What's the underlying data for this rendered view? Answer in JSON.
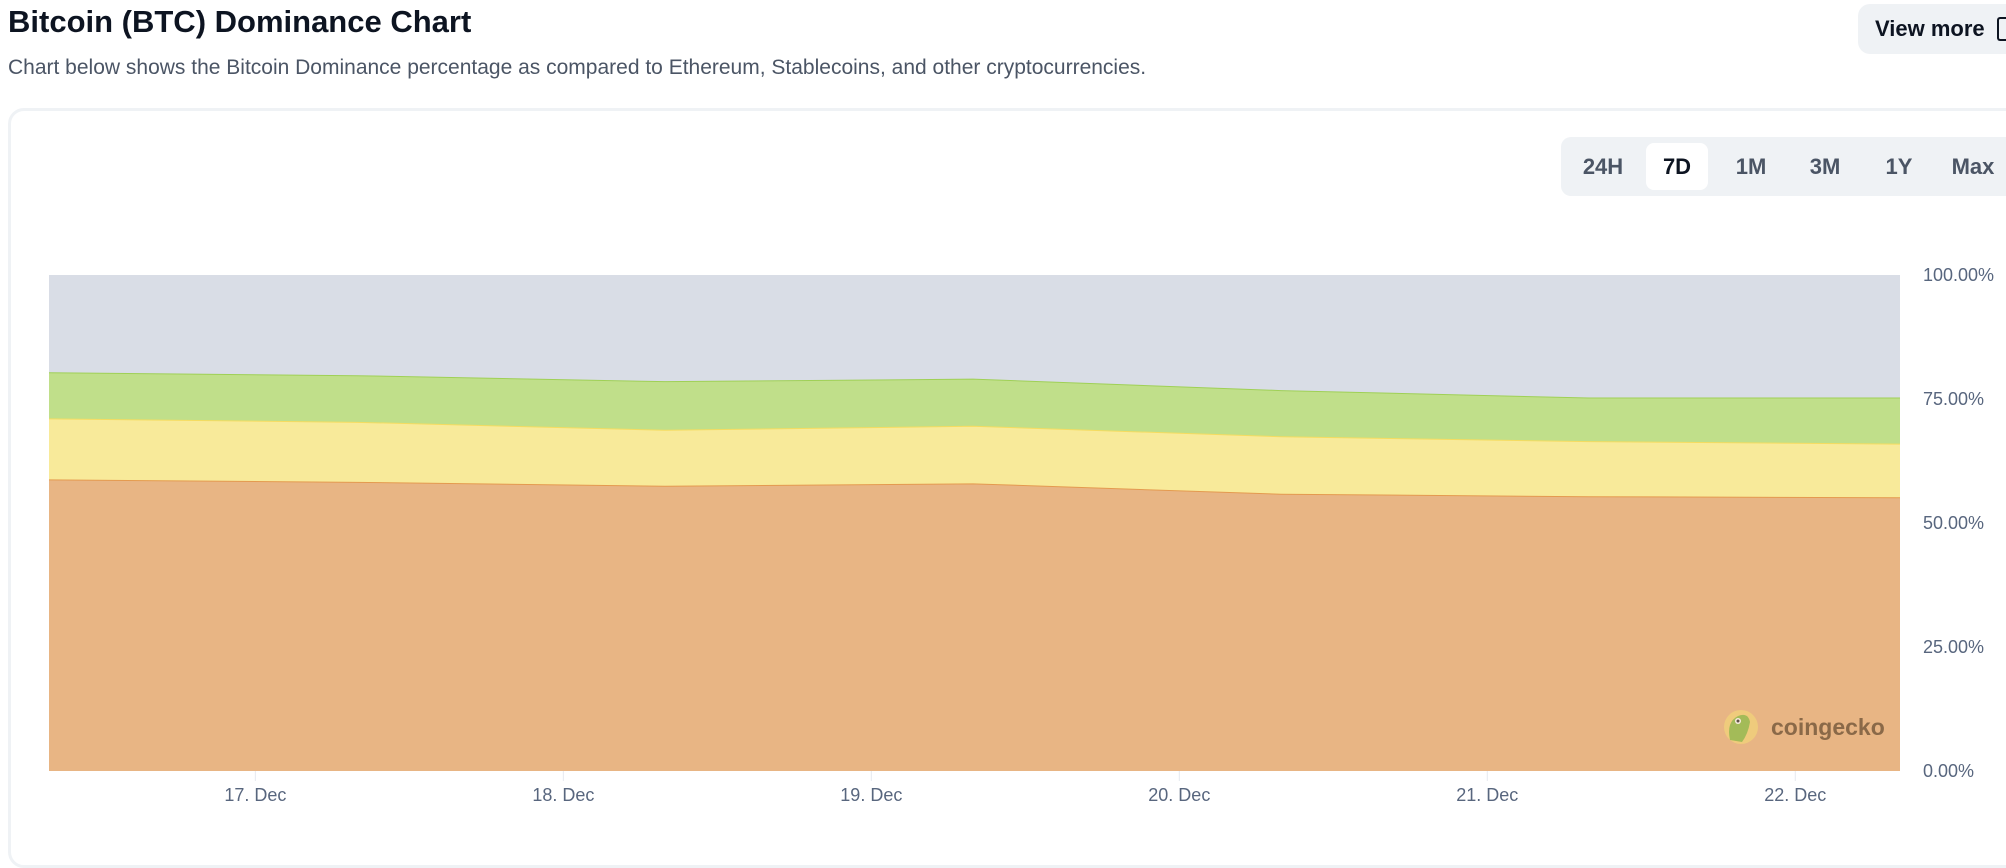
{
  "header": {
    "title": "Bitcoin (BTC) Dominance Chart",
    "subtitle": "Chart below shows the Bitcoin Dominance percentage as compared to Ethereum, Stablecoins, and other cryptocurrencies.",
    "view_more_label": "View more"
  },
  "range_selector": {
    "options": [
      "24H",
      "7D",
      "1M",
      "3M",
      "1Y",
      "Max"
    ],
    "selected": "7D"
  },
  "watermark": "coingecko",
  "chart_data": {
    "type": "area",
    "stacked": true,
    "title": "Bitcoin (BTC) Dominance Chart",
    "xlabel": "",
    "ylabel": "",
    "x": [
      16.33,
      17.33,
      18.33,
      19.33,
      20.33,
      21.33,
      22.33
    ],
    "x_unit": "day of December",
    "xlim": [
      16.33,
      22.34
    ],
    "ylim": [
      0,
      100
    ],
    "x_ticks": [
      {
        "value": 17,
        "label": "17. Dec"
      },
      {
        "value": 18,
        "label": "18. Dec"
      },
      {
        "value": 19,
        "label": "19. Dec"
      },
      {
        "value": 20,
        "label": "20. Dec"
      },
      {
        "value": 21,
        "label": "21. Dec"
      },
      {
        "value": 22,
        "label": "22. Dec"
      }
    ],
    "y_ticks": [
      {
        "value": 0,
        "label": "0.00%"
      },
      {
        "value": 25,
        "label": "25.00%"
      },
      {
        "value": 50,
        "label": "50.00%"
      },
      {
        "value": 75,
        "label": "75.00%"
      },
      {
        "value": 100,
        "label": "100.00%"
      }
    ],
    "series": [
      {
        "name": "Bitcoin",
        "color": "#e8b584",
        "line": "#e49a4f",
        "values": [
          58.8,
          58.3,
          57.5,
          58.0,
          55.9,
          55.4,
          55.2
        ]
      },
      {
        "name": "Ethereum",
        "color": "#f8ea9a",
        "line": "#f5dc60",
        "values": [
          12.3,
          12.1,
          11.3,
          11.6,
          11.6,
          11.1,
          10.8
        ]
      },
      {
        "name": "Stablecoins",
        "color": "#c0df8a",
        "line": "#9fd056",
        "values": [
          9.3,
          9.4,
          9.8,
          9.5,
          9.3,
          8.8,
          9.3
        ]
      },
      {
        "name": "Others",
        "color": "#d9dde6",
        "line": "#d0d5df",
        "values": [
          19.6,
          20.2,
          21.4,
          20.9,
          23.2,
          24.7,
          24.7
        ]
      }
    ],
    "grid": false,
    "legend": "none"
  }
}
